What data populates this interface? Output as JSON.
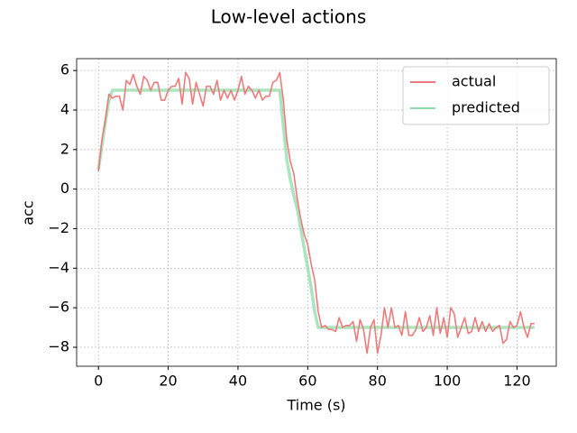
{
  "chart_data": {
    "type": "line",
    "title": "Low-level actions",
    "x_label": "Time (s)",
    "y_label": "acc",
    "x": [
      0,
      1,
      2,
      3,
      4,
      5,
      6,
      7,
      8,
      9,
      10,
      11,
      12,
      13,
      14,
      15,
      16,
      17,
      18,
      19,
      20,
      21,
      22,
      23,
      24,
      25,
      26,
      27,
      28,
      29,
      30,
      31,
      32,
      33,
      34,
      35,
      36,
      37,
      38,
      39,
      40,
      41,
      42,
      43,
      44,
      45,
      46,
      47,
      48,
      49,
      50,
      51,
      52,
      53,
      54,
      55,
      56,
      57,
      58,
      59,
      60,
      61,
      62,
      63,
      64,
      65,
      66,
      67,
      68,
      69,
      70,
      71,
      72,
      73,
      74,
      75,
      76,
      77,
      78,
      79,
      80,
      81,
      82,
      83,
      84,
      85,
      86,
      87,
      88,
      89,
      90,
      91,
      92,
      93,
      94,
      95,
      96,
      97,
      98,
      99,
      100,
      101,
      102,
      103,
      104,
      105,
      106,
      107,
      108,
      109,
      110,
      111,
      112,
      113,
      114,
      115,
      116,
      117,
      118,
      119,
      120,
      121,
      122,
      123,
      124,
      125
    ],
    "series": [
      {
        "name": "actual",
        "color": "#ee7b7b",
        "values": [
          0.9,
          2.5,
          3.5,
          4.8,
          4.6,
          4.7,
          4.7,
          4.0,
          5.5,
          5.3,
          5.8,
          5.2,
          4.8,
          5.7,
          5.5,
          5.0,
          5.4,
          5.4,
          4.5,
          4.5,
          5.0,
          5.2,
          5.2,
          5.6,
          4.3,
          5.9,
          5.6,
          4.3,
          5.4,
          4.8,
          4.2,
          5.2,
          5.2,
          4.8,
          5.5,
          4.5,
          5.0,
          4.6,
          5.0,
          4.5,
          5.0,
          5.7,
          4.8,
          5.2,
          5.0,
          4.6,
          5.0,
          4.5,
          4.7,
          4.7,
          5.4,
          5.5,
          5.9,
          4.5,
          2.5,
          1.4,
          0.8,
          -0.5,
          -1.5,
          -2.3,
          -2.8,
          -3.8,
          -4.6,
          -6.2,
          -7.0,
          -6.9,
          -7.1,
          -7.1,
          -7.2,
          -6.5,
          -7.0,
          -6.9,
          -6.9,
          -6.7,
          -7.7,
          -6.6,
          -7.1,
          -8.3,
          -7.0,
          -6.6,
          -8.3,
          -7.4,
          -6.0,
          -7.0,
          -6.0,
          -7.0,
          -6.9,
          -7.4,
          -6.2,
          -7.4,
          -7.4,
          -7.1,
          -6.5,
          -7.2,
          -7.0,
          -6.4,
          -7.4,
          -6.0,
          -7.3,
          -6.5,
          -7.5,
          -6.0,
          -6.3,
          -7.5,
          -7.0,
          -6.5,
          -7.3,
          -7.2,
          -6.5,
          -7.2,
          -6.7,
          -7.2,
          -6.8,
          -7.2,
          -7.0,
          -6.9,
          -7.8,
          -7.6,
          -6.7,
          -7.0,
          -6.9,
          -6.2,
          -7.0,
          -7.5,
          -6.8,
          -6.8
        ]
      },
      {
        "name": "predicted",
        "color": "#8fdcaa",
        "values": [
          1.0,
          2.2,
          3.4,
          4.5,
          5,
          5,
          5,
          5,
          5,
          5,
          5,
          5,
          5,
          5,
          5,
          5,
          5,
          5,
          5,
          5,
          5,
          5,
          5,
          5,
          5,
          5,
          5,
          5,
          5,
          5,
          5,
          5,
          5,
          5,
          5,
          5,
          5,
          5,
          5,
          5,
          5,
          5,
          5,
          5,
          5,
          5,
          5,
          5,
          5,
          5,
          5,
          5,
          5,
          3.2,
          1.5,
          0.5,
          -0.3,
          -1.0,
          -2.0,
          -3.0,
          -4.0,
          -5.0,
          -6.2,
          -7,
          -7,
          -7,
          -7,
          -7,
          -7,
          -7,
          -7,
          -7,
          -7,
          -7,
          -7,
          -7,
          -7,
          -7,
          -7,
          -7,
          -7,
          -7,
          -7,
          -7,
          -7,
          -7,
          -7,
          -7,
          -7,
          -7,
          -7,
          -7,
          -7,
          -7,
          -7,
          -7,
          -7,
          -7,
          -7,
          -7,
          -7,
          -7,
          -7,
          -7,
          -7,
          -7,
          -7,
          -7,
          -7,
          -7,
          -7,
          -7,
          -7,
          -7,
          -7,
          -7,
          -7,
          -7,
          -7,
          -7,
          -7,
          -7,
          -7,
          -7,
          -7,
          -7
        ]
      }
    ],
    "xlim": [
      -6.25,
      131.25
    ],
    "ylim": [
      -8.96,
      6.6
    ],
    "xticks": [
      0,
      20,
      40,
      60,
      80,
      100,
      120
    ],
    "yticks": [
      {
        "value": -8,
        "label": "−8"
      },
      {
        "value": -6,
        "label": "−6"
      },
      {
        "value": -4,
        "label": "−4"
      },
      {
        "value": -2,
        "label": "−2"
      },
      0,
      2,
      4,
      6
    ],
    "grid": true,
    "legend": "upper right"
  }
}
